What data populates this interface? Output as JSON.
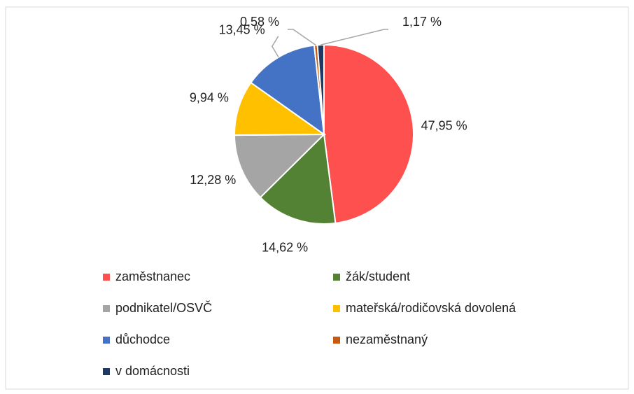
{
  "chart_data": {
    "type": "pie",
    "categories": [
      "zaměstnanec",
      "žák/student",
      "podnikatel/OSVČ",
      "mateřská/rodičovská dovolená",
      "důchodce",
      "nezaměstnaný",
      "v domácnosti"
    ],
    "values": [
      47.95,
      14.62,
      12.28,
      9.94,
      13.45,
      0.58,
      1.17
    ],
    "value_labels": [
      "47,95 %",
      "14,62 %",
      "12,28 %",
      "9,94 %",
      "13,45 %",
      "0,58 %",
      "1,17 %"
    ],
    "colors": [
      "#FF5050",
      "#548235",
      "#A5A5A5",
      "#FFC000",
      "#4472C4",
      "#C55A11",
      "#203864"
    ],
    "legend": "bottom"
  }
}
